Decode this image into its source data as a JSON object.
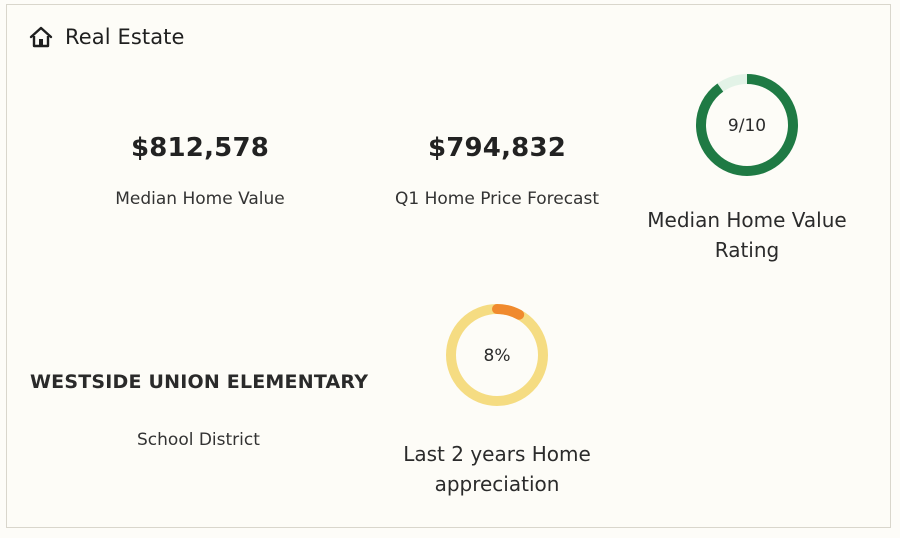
{
  "header": {
    "title": "Real Estate",
    "icon": "home-icon"
  },
  "median_value": {
    "value": "$812,578",
    "label": "Median Home Value"
  },
  "forecast": {
    "value": "$794,832",
    "label": "Q1 Home Price Forecast"
  },
  "rating": {
    "value_text": "9/10",
    "fraction": 0.9,
    "label_line1": "Median Home Value",
    "label_line2": "Rating",
    "ring_color": "#1f7a44",
    "track_color": "#e3f3e7"
  },
  "school": {
    "name": "WESTSIDE UNION ELEMENTARY",
    "label": "School District"
  },
  "appreciation": {
    "value_text": "8%",
    "fraction": 0.08,
    "label_line1": "Last 2 years Home",
    "label_line2": "appreciation",
    "ring_color": "#f08a2e",
    "track_color": "#f5dc82"
  }
}
